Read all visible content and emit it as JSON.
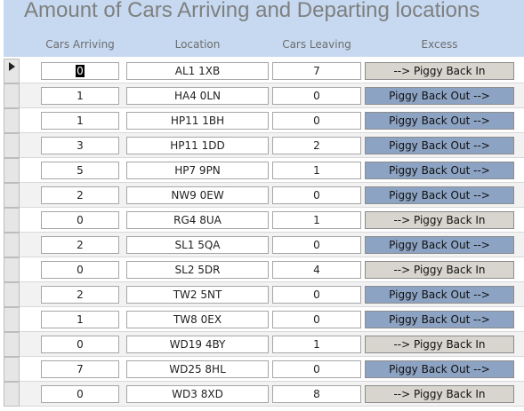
{
  "header": {
    "title": "Amount of Cars Arriving and Departing locations"
  },
  "table": {
    "columns": [
      "Cars Arriving",
      "Location",
      "Cars Leaving",
      "Excess"
    ],
    "rows": [
      [
        0,
        "AL1 1XB",
        7,
        "--> Piggy Back In"
      ],
      [
        1,
        "HA4 0LN",
        0,
        "Piggy Back Out -->"
      ],
      [
        1,
        "HP11 1BH",
        0,
        "Piggy Back Out -->"
      ],
      [
        3,
        "HP11 1DD",
        2,
        "Piggy Back Out -->"
      ],
      [
        5,
        "HP7 9PN",
        1,
        "Piggy Back Out -->"
      ],
      [
        2,
        "NW9 0EW",
        0,
        "Piggy Back Out -->"
      ],
      [
        0,
        "RG4 8UA",
        1,
        "--> Piggy Back In"
      ],
      [
        2,
        "SL1 5QA",
        0,
        "Piggy Back Out -->"
      ],
      [
        0,
        "SL2 5DR",
        4,
        "--> Piggy Back In"
      ],
      [
        2,
        "TW2 5NT",
        0,
        "Piggy Back Out -->"
      ],
      [
        1,
        "TW8 0EX",
        0,
        "Piggy Back Out -->"
      ],
      [
        0,
        "WD19 4BY",
        1,
        "--> Piggy Back In"
      ],
      [
        7,
        "WD25 8HL",
        0,
        "Piggy Back Out -->"
      ],
      [
        0,
        "WD3 8XD",
        8,
        "--> Piggy Back In"
      ]
    ]
  }
}
